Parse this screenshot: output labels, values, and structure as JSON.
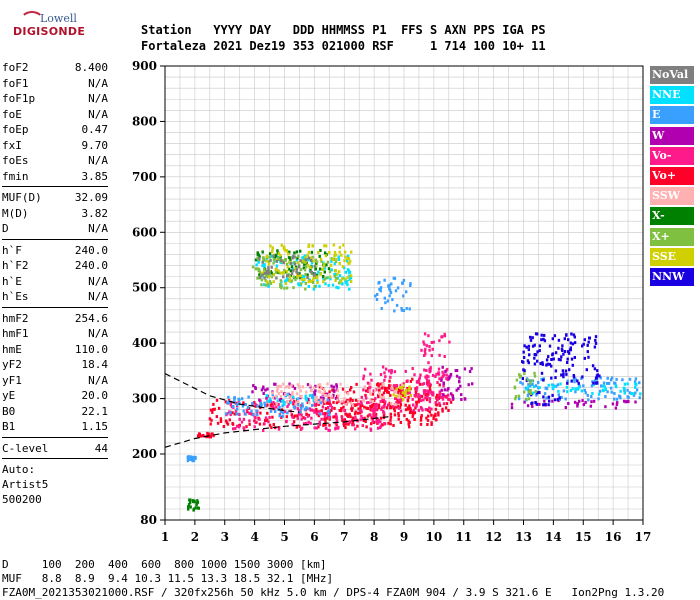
{
  "logo": {
    "brand_top": "Lowell",
    "brand_bottom": "DIGISONDE"
  },
  "header": {
    "line1": "Station   YYYY DAY   DDD HHMMSS P1  FFS S AXN PPS IGA PS",
    "line2": "Fortaleza 2021 Dez19 353 021000 RSF     1 714 100 10+ 11"
  },
  "params_group1": [
    {
      "name": "foF2",
      "value": "8.400"
    },
    {
      "name": "foF1",
      "value": "N/A"
    },
    {
      "name": "foF1p",
      "value": "N/A"
    },
    {
      "name": "foE",
      "value": "N/A"
    },
    {
      "name": "foEp",
      "value": "0.47"
    },
    {
      "name": "fxI",
      "value": "9.70"
    },
    {
      "name": "foEs",
      "value": "N/A"
    },
    {
      "name": "fmin",
      "value": "3.85"
    }
  ],
  "params_group2": [
    {
      "name": "MUF(D)",
      "value": "32.09"
    },
    {
      "name": "M(D)",
      "value": "3.82"
    },
    {
      "name": "D",
      "value": "N/A"
    }
  ],
  "params_group3": [
    {
      "name": "h`F",
      "value": "240.0"
    },
    {
      "name": "h`F2",
      "value": "240.0"
    },
    {
      "name": "h`E",
      "value": "N/A"
    },
    {
      "name": "h`Es",
      "value": "N/A"
    }
  ],
  "params_group4": [
    {
      "name": "hmF2",
      "value": "254.6"
    },
    {
      "name": "hmF1",
      "value": "N/A"
    },
    {
      "name": "hmE",
      "value": "110.0"
    },
    {
      "name": "yF2",
      "value": "18.4"
    },
    {
      "name": "yF1",
      "value": "N/A"
    },
    {
      "name": "yE",
      "value": "20.0"
    },
    {
      "name": "B0",
      "value": "22.1"
    },
    {
      "name": "B1",
      "value": "1.15"
    }
  ],
  "params_group5": [
    {
      "name": "C-level",
      "value": "44"
    }
  ],
  "autoscaling": {
    "line1": "Auto:",
    "line2": "Artist5",
    "line3": "500200"
  },
  "legend": [
    {
      "label": "NoVal",
      "color": "#7f7f7f"
    },
    {
      "label": "NNE",
      "color": "#00e0ff"
    },
    {
      "label": "E",
      "color": "#3aa0ff"
    },
    {
      "label": "W",
      "color": "#b000b0"
    },
    {
      "label": "Vo-",
      "color": "#ff1a8c"
    },
    {
      "label": "Vo+",
      "color": "#ff0028"
    },
    {
      "label": "SSW",
      "color": "#ffb0b0"
    },
    {
      "label": "X-",
      "color": "#008000"
    },
    {
      "label": "X+",
      "color": "#80c040"
    },
    {
      "label": "SSE",
      "color": "#d0d000"
    },
    {
      "label": "NNW",
      "color": "#1a00e0"
    }
  ],
  "footer": {
    "line1": "D     100  200  400  600  800 1000 1500 3000 [km]",
    "line2": "MUF   8.8  8.9  9.4 10.3 11.5 13.3 18.5 32.1 [MHz]",
    "line3": "FZA0M_2021353021000.RSF / 320fx256h 50 kHz 5.0 km / DPS-4 FZA0M 904 / 3.9 S 321.6 E   Ion2Png 1.3.20"
  },
  "chart_data": {
    "type": "scatter",
    "xlabel": "",
    "ylabel": "",
    "xlim": [
      1,
      17
    ],
    "ylim": [
      80,
      900
    ],
    "x_ticks": [
      1,
      2,
      3,
      4,
      5,
      6,
      7,
      8,
      9,
      10,
      11,
      12,
      13,
      14,
      15,
      16,
      17
    ],
    "y_ticks": [
      80,
      200,
      300,
      400,
      500,
      600,
      700,
      800,
      900
    ],
    "grid": true,
    "legend_placement": "right",
    "series": [
      {
        "name": "Vo+",
        "color": "#ff0028",
        "clusters": [
          [
            2.0,
            232,
            2.6,
            240
          ],
          [
            2.4,
            250,
            9.3,
            300
          ],
          [
            6.0,
            255,
            10.2,
            330
          ],
          [
            8.0,
            285,
            9.6,
            340
          ],
          [
            10.0,
            270,
            10.6,
            310
          ]
        ]
      },
      {
        "name": "Vo-",
        "color": "#ff1a8c",
        "clusters": [
          [
            3.0,
            245,
            8.5,
            300
          ],
          [
            7.5,
            280,
            10.3,
            360
          ],
          [
            9.5,
            300,
            10.5,
            420
          ]
        ]
      },
      {
        "name": "W",
        "color": "#b000b0",
        "clusters": [
          [
            3.8,
            300,
            6.8,
            330
          ],
          [
            10.2,
            300,
            11.3,
            360
          ],
          [
            12.5,
            285,
            16.8,
            300
          ]
        ]
      },
      {
        "name": "E",
        "color": "#3aa0ff",
        "clusters": [
          [
            3.0,
            270,
            6.5,
            310
          ],
          [
            8.0,
            460,
            9.2,
            520
          ],
          [
            12.8,
            300,
            16.9,
            340
          ],
          [
            1.7,
            190,
            2.0,
            198
          ]
        ]
      },
      {
        "name": "NNE",
        "color": "#00e0ff",
        "clusters": [
          [
            4.0,
            500,
            7.2,
            560
          ],
          [
            4.3,
            290,
            6.0,
            310
          ],
          [
            13.0,
            310,
            16.9,
            330
          ]
        ]
      },
      {
        "name": "NNW",
        "color": "#1a00e0",
        "clusters": [
          [
            12.9,
            330,
            15.5,
            420
          ],
          [
            13.0,
            290,
            14.2,
            320
          ]
        ]
      },
      {
        "name": "X-",
        "color": "#008000",
        "clusters": [
          [
            4.0,
            520,
            6.5,
            570
          ],
          [
            1.7,
            100,
            2.1,
            120
          ]
        ]
      },
      {
        "name": "X+",
        "color": "#80c040",
        "clusters": [
          [
            3.9,
            500,
            6.8,
            560
          ],
          [
            12.6,
            300,
            13.4,
            350
          ]
        ]
      },
      {
        "name": "SSE",
        "color": "#d0d000",
        "clusters": [
          [
            4.2,
            510,
            7.2,
            580
          ],
          [
            8.6,
            300,
            9.2,
            330
          ]
        ]
      },
      {
        "name": "SSW",
        "color": "#ffb0b0",
        "clusters": [
          [
            4.5,
            290,
            9.0,
            330
          ]
        ]
      },
      {
        "name": "NoVal",
        "color": "#7f7f7f",
        "clusters": [
          [
            4.1,
            520,
            6.0,
            560
          ]
        ]
      }
    ],
    "profile_dashed_upper": [
      [
        1.0,
        345
      ],
      [
        2.5,
        305
      ],
      [
        3.5,
        290
      ],
      [
        4.5,
        282
      ],
      [
        5.5,
        275
      ]
    ],
    "profile_dashed_lower": [
      [
        1.0,
        212
      ],
      [
        2.0,
        228
      ],
      [
        3.0,
        238
      ],
      [
        5.0,
        250
      ],
      [
        7.0,
        258
      ],
      [
        8.6,
        268
      ]
    ]
  }
}
